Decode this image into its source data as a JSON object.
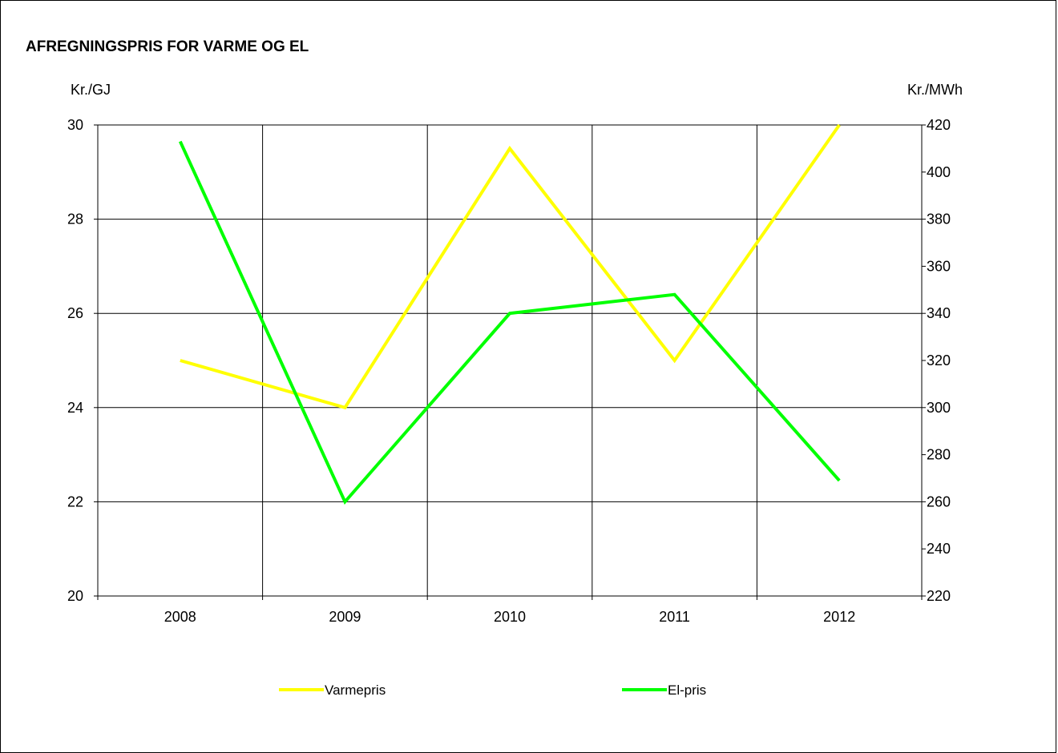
{
  "chart_data": {
    "type": "line",
    "title": "AFREGNINGSPRIS FOR VARME OG EL",
    "ylabel_left": "Kr./GJ",
    "ylabel_right": "Kr./MWh",
    "x": [
      "2008",
      "2009",
      "2010",
      "2011",
      "2012"
    ],
    "ylim_left": [
      20,
      30
    ],
    "ylim_right": [
      220,
      420
    ],
    "yticks_left": [
      "20",
      "22",
      "24",
      "26",
      "28",
      "30"
    ],
    "yticks_right": [
      "220",
      "240",
      "260",
      "280",
      "300",
      "320",
      "340",
      "360",
      "380",
      "400",
      "420"
    ],
    "grid": true,
    "legend_position": "bottom",
    "series": [
      {
        "name": "Varmepris",
        "axis": "left",
        "color": "#ffff00",
        "values": [
          25.0,
          24.0,
          29.5,
          25.0,
          30.0
        ]
      },
      {
        "name": "El-pris",
        "axis": "right",
        "color": "#00ff00",
        "values": [
          413,
          260,
          340,
          348,
          269
        ]
      }
    ]
  }
}
